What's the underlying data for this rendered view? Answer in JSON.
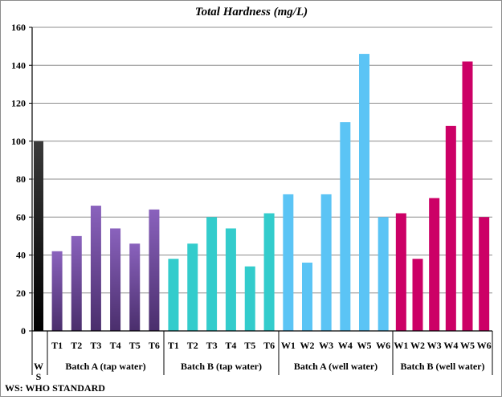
{
  "chart_data": {
    "type": "bar",
    "title": "Total Hardness (mg/L)",
    "xlabel": "",
    "ylabel": "",
    "ylim": [
      0,
      160
    ],
    "yticks": [
      0,
      20,
      40,
      60,
      80,
      100,
      120,
      140,
      160
    ],
    "grid": "horizontal",
    "legend": "none",
    "footnote": "WS: WHO STANDARD",
    "groups": [
      {
        "name": "",
        "color": "#000000",
        "gradient_top": "#3a3a3a",
        "gradient_bottom": "#000000",
        "ws_label_lines": [
          "W",
          "S"
        ],
        "bars": [
          {
            "label": "",
            "value": 100
          }
        ]
      },
      {
        "name": "Batch A (tap water)",
        "color": "#7a52a8",
        "gradient_top": "#8a62bd",
        "gradient_bottom": "#4a2e6c",
        "bars": [
          {
            "label": "T1",
            "value": 42
          },
          {
            "label": "T2",
            "value": 50
          },
          {
            "label": "T3",
            "value": 66
          },
          {
            "label": "T4",
            "value": 54
          },
          {
            "label": "T5",
            "value": 46
          },
          {
            "label": "T6",
            "value": 64
          }
        ]
      },
      {
        "name": "Batch B (tap water)",
        "color": "#33cccc",
        "gradient_top": "#33cccc",
        "gradient_bottom": "#33cccc",
        "bars": [
          {
            "label": "T1",
            "value": 38
          },
          {
            "label": "T2",
            "value": 46
          },
          {
            "label": "T3",
            "value": 60
          },
          {
            "label": "T4",
            "value": 54
          },
          {
            "label": "T5",
            "value": 34
          },
          {
            "label": "T6",
            "value": 62
          }
        ]
      },
      {
        "name": "Batch A (well water)",
        "color": "#5bc4f5",
        "gradient_top": "#5bc4f5",
        "gradient_bottom": "#5bc4f5",
        "bars": [
          {
            "label": "W1",
            "value": 72
          },
          {
            "label": "W2",
            "value": 36
          },
          {
            "label": "W3",
            "value": 72
          },
          {
            "label": "W4",
            "value": 110
          },
          {
            "label": "W5",
            "value": 146
          },
          {
            "label": "W6",
            "value": 60
          }
        ]
      },
      {
        "name": "Batch B (well water)",
        "color": "#cc0066",
        "gradient_top": "#cc0066",
        "gradient_bottom": "#cc0066",
        "bars": [
          {
            "label": "W1",
            "value": 62
          },
          {
            "label": "W2",
            "value": 38
          },
          {
            "label": "W3",
            "value": 70
          },
          {
            "label": "W4",
            "value": 108
          },
          {
            "label": "W5",
            "value": 142
          },
          {
            "label": "W6",
            "value": 60
          }
        ]
      }
    ]
  }
}
